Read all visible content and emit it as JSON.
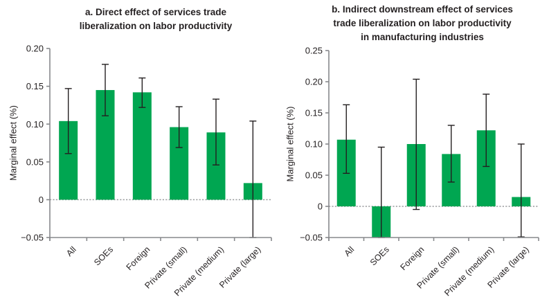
{
  "figure": {
    "background": "#ffffff",
    "bar_color": "#00a651",
    "error_bar_color": "#231f20",
    "axis_color": "#87898c",
    "zero_line_color": "#9a9c9e",
    "text_color": "#231f20"
  },
  "chart_data": [
    {
      "id": "panel-a",
      "type": "bar",
      "title": "a. Direct effect of services trade\nliberalization on labor productivity",
      "ylabel": "Marginal effect (%)",
      "xlabel": "",
      "legend": "none",
      "grid": false,
      "zero_line": "dotted",
      "categories": [
        "All",
        "SOEs",
        "Foreign",
        "Private (small)",
        "Private (medium)",
        "Private (large)"
      ],
      "values": [
        0.104,
        0.145,
        0.142,
        0.096,
        0.089,
        0.022
      ],
      "error_low": [
        0.061,
        0.111,
        0.122,
        0.069,
        0.046,
        -0.05
      ],
      "error_high": [
        0.147,
        0.179,
        0.161,
        0.123,
        0.133,
        0.104
      ],
      "ylim": [
        -0.05,
        0.2
      ],
      "yticks": [
        {
          "v": 0.2,
          "label": "0.20"
        },
        {
          "v": 0.15,
          "label": "0.15"
        },
        {
          "v": 0.1,
          "label": "0.10"
        },
        {
          "v": 0.05,
          "label": "0.05"
        },
        {
          "v": 0.0,
          "label": "0"
        },
        {
          "v": -0.05,
          "label": "−0.05"
        }
      ]
    },
    {
      "id": "panel-b",
      "type": "bar",
      "title": "b. Indirect downstream effect of services\ntrade liberalization on labor productivity\nin manufacturing industries",
      "ylabel": "Marginal effect (%)",
      "xlabel": "",
      "legend": "none",
      "grid": false,
      "zero_line": "dotted",
      "categories": [
        "All",
        "SOEs",
        "Foreign",
        "Private (small)",
        "Private (medium)",
        "Private (large)"
      ],
      "values": [
        0.107,
        -0.05,
        0.1,
        0.084,
        0.122,
        0.015
      ],
      "error_low": [
        0.053,
        -0.05,
        -0.005,
        0.039,
        0.064,
        -0.049
      ],
      "error_high": [
        0.163,
        0.095,
        0.204,
        0.13,
        0.18,
        0.1
      ],
      "ylim": [
        -0.05,
        0.25
      ],
      "yticks": [
        {
          "v": 0.25,
          "label": "0.25"
        },
        {
          "v": 0.2,
          "label": "0.20"
        },
        {
          "v": 0.15,
          "label": "0.15"
        },
        {
          "v": 0.1,
          "label": "0.10"
        },
        {
          "v": 0.05,
          "label": "0.05"
        },
        {
          "v": 0.0,
          "label": "0"
        },
        {
          "v": -0.05,
          "label": "−0.05"
        }
      ]
    }
  ]
}
